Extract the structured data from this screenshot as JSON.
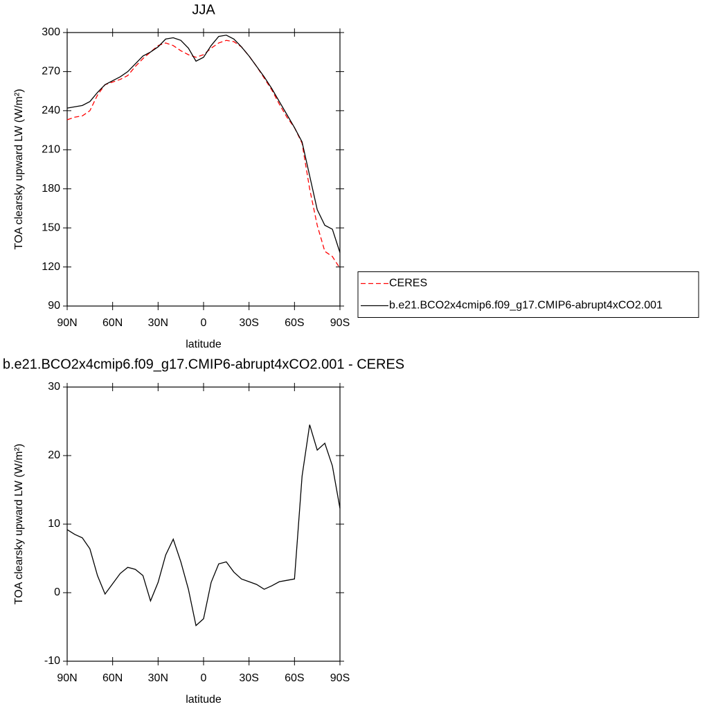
{
  "chart_data": [
    {
      "type": "line",
      "title": "JJA",
      "xlabel": "latitude",
      "ylabel": "TOA clearsky upward LW (W/m²)",
      "x": [
        90,
        85,
        80,
        75,
        70,
        65,
        60,
        55,
        50,
        45,
        40,
        35,
        30,
        25,
        20,
        15,
        10,
        5,
        0,
        -5,
        -10,
        -15,
        -20,
        -25,
        -30,
        -35,
        -40,
        -45,
        -50,
        -55,
        -60,
        -65,
        -70,
        -75,
        -80,
        -85,
        -90
      ],
      "series": [
        {
          "name": "CERES",
          "color": "#ff0000",
          "dash": true,
          "values": [
            233,
            235,
            236,
            240,
            252,
            260,
            262,
            264,
            267,
            274,
            280,
            285,
            290,
            292,
            290,
            286,
            283,
            281,
            283,
            288,
            292,
            294,
            293,
            289,
            282,
            274,
            265,
            256,
            245,
            235,
            227,
            215,
            180,
            152,
            132,
            128,
            119
          ]
        },
        {
          "name": "b.e21.BCO2x4cmip6.f09_g17.CMIP6-abrupt4xCO2.001",
          "color": "#000000",
          "dash": false,
          "values": [
            242,
            243,
            244,
            247,
            254,
            260,
            263,
            266,
            270,
            276,
            282,
            285,
            289,
            295,
            296,
            294,
            288,
            278,
            281,
            290,
            297,
            298,
            295,
            289,
            282,
            274,
            266,
            257,
            247,
            237,
            227,
            216,
            190,
            164,
            152,
            149,
            131
          ]
        }
      ],
      "xlim": [
        90,
        -90
      ],
      "xticks": [
        {
          "value": 90,
          "label": "90N"
        },
        {
          "value": 60,
          "label": "60N"
        },
        {
          "value": 30,
          "label": "30N"
        },
        0,
        {
          "value": -30,
          "label": "30S"
        },
        {
          "value": -60,
          "label": "60S"
        },
        {
          "value": -90,
          "label": "90S"
        }
      ],
      "ylim": [
        90,
        300
      ],
      "yticks": [
        90,
        120,
        150,
        180,
        210,
        240,
        270,
        300
      ],
      "legend": "right"
    },
    {
      "type": "line",
      "title": "b.e21.BCO2x4cmip6.f09_g17.CMIP6-abrupt4xCO2.001 - CERES",
      "xlabel": "latitude",
      "ylabel": "TOA clearsky upward LW (W/m²)",
      "x": [
        90,
        85,
        80,
        75,
        70,
        65,
        60,
        55,
        50,
        45,
        40,
        35,
        30,
        25,
        20,
        15,
        10,
        5,
        0,
        -5,
        -10,
        -15,
        -20,
        -25,
        -30,
        -35,
        -40,
        -45,
        -50,
        -55,
        -60,
        -65,
        -70,
        -75,
        -80,
        -85,
        -90
      ],
      "series": [
        {
          "color": "#000000",
          "dash": false,
          "values": [
            9.2,
            8.5,
            8.0,
            6.4,
            2.5,
            -0.2,
            1.3,
            2.8,
            3.7,
            3.4,
            2.5,
            -1.2,
            1.5,
            5.5,
            7.8,
            4.5,
            0.5,
            -4.8,
            -3.8,
            1.5,
            4.2,
            4.5,
            3.0,
            2.0,
            1.6,
            1.2,
            0.5,
            1.0,
            1.6,
            1.8,
            2.0,
            17.0,
            24.5,
            20.8,
            21.8,
            18.5,
            12.3
          ]
        }
      ],
      "xlim": [
        90,
        -90
      ],
      "xticks": [
        {
          "value": 90,
          "label": "90N"
        },
        {
          "value": 60,
          "label": "60N"
        },
        {
          "value": 30,
          "label": "30N"
        },
        0,
        {
          "value": -30,
          "label": "30S"
        },
        {
          "value": -60,
          "label": "60S"
        },
        {
          "value": -90,
          "label": "90S"
        }
      ],
      "ylim": [
        -10,
        30
      ],
      "yticks": [
        -10,
        0,
        10,
        20,
        30
      ]
    }
  ]
}
